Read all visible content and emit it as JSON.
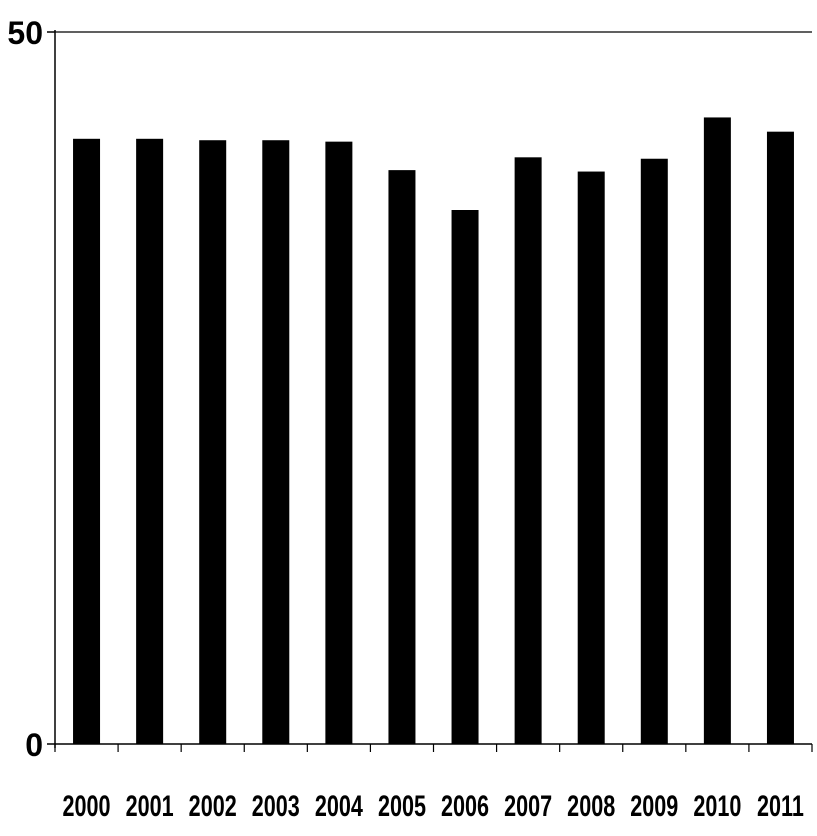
{
  "chart_data": {
    "type": "bar",
    "categories": [
      "2000",
      "2001",
      "2002",
      "2003",
      "2004",
      "2005",
      "2006",
      "2007",
      "2008",
      "2009",
      "2010",
      "2011"
    ],
    "values": [
      42.5,
      42.5,
      42.4,
      42.4,
      42.3,
      40.3,
      37.5,
      41.2,
      40.2,
      41.1,
      44.0,
      43.0
    ],
    "ylim": [
      0,
      50
    ],
    "y_tick_labels": [
      "0",
      "50"
    ],
    "grid": false,
    "bar_color": "#000000",
    "title": "",
    "xlabel": "",
    "ylabel": ""
  }
}
